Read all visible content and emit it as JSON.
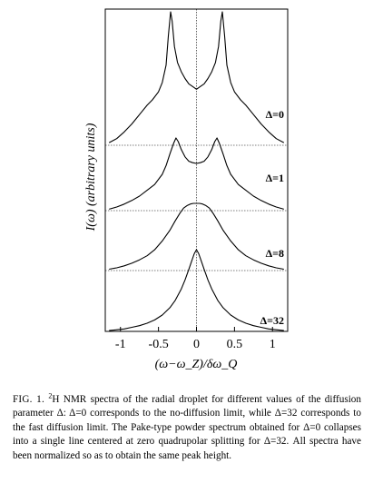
{
  "chart_data": {
    "type": "line",
    "title": "",
    "xlabel": "(ω−ω_Z)/δω_Q",
    "ylabel": "I(ω)   (arbitrary units)",
    "xlim": [
      -1.2,
      1.2
    ],
    "xticks": [
      -1,
      -0.5,
      0,
      0.5,
      1
    ],
    "xtick_labels": [
      "-1",
      "-0.5",
      "0",
      "0.5",
      "1"
    ],
    "grid": false,
    "legend": "none (labels at right of each trace)",
    "series": [
      {
        "name": "Δ=0",
        "x": [
          -1.15,
          -1.05,
          -0.95,
          -0.85,
          -0.75,
          -0.65,
          -0.58,
          -0.5,
          -0.45,
          -0.4,
          -0.37,
          -0.34,
          -0.32,
          -0.29,
          -0.25,
          -0.2,
          -0.15,
          -0.1,
          -0.05,
          0,
          0.05,
          0.1,
          0.15,
          0.2,
          0.25,
          0.29,
          0.32,
          0.34,
          0.37,
          0.4,
          0.45,
          0.5,
          0.58,
          0.65,
          0.75,
          0.85,
          0.95,
          1.05,
          1.15
        ],
        "y": [
          0.02,
          0.05,
          0.1,
          0.16,
          0.23,
          0.3,
          0.34,
          0.4,
          0.47,
          0.6,
          0.82,
          1.0,
          0.93,
          0.74,
          0.62,
          0.55,
          0.5,
          0.46,
          0.44,
          0.42,
          0.44,
          0.46,
          0.5,
          0.55,
          0.62,
          0.74,
          0.93,
          1.0,
          0.82,
          0.6,
          0.47,
          0.4,
          0.34,
          0.3,
          0.23,
          0.16,
          0.1,
          0.05,
          0.02
        ]
      },
      {
        "name": "Δ=1",
        "x": [
          -1.15,
          -1.05,
          -0.95,
          -0.85,
          -0.75,
          -0.65,
          -0.55,
          -0.45,
          -0.4,
          -0.35,
          -0.3,
          -0.27,
          -0.24,
          -0.2,
          -0.15,
          -0.1,
          -0.05,
          0,
          0.05,
          0.1,
          0.15,
          0.2,
          0.24,
          0.27,
          0.3,
          0.35,
          0.4,
          0.45,
          0.55,
          0.65,
          0.75,
          0.85,
          0.95,
          1.05,
          1.15
        ],
        "y": [
          0.02,
          0.05,
          0.09,
          0.14,
          0.2,
          0.28,
          0.36,
          0.5,
          0.62,
          0.78,
          0.93,
          1.0,
          0.95,
          0.84,
          0.74,
          0.68,
          0.66,
          0.65,
          0.66,
          0.68,
          0.74,
          0.84,
          0.95,
          1.0,
          0.93,
          0.78,
          0.62,
          0.5,
          0.36,
          0.28,
          0.2,
          0.14,
          0.09,
          0.05,
          0.02
        ]
      },
      {
        "name": "Δ=8",
        "x": [
          -1.15,
          -1.05,
          -0.95,
          -0.85,
          -0.75,
          -0.65,
          -0.55,
          -0.45,
          -0.35,
          -0.28,
          -0.22,
          -0.17,
          -0.12,
          -0.08,
          -0.04,
          0,
          0.04,
          0.08,
          0.12,
          0.17,
          0.22,
          0.28,
          0.35,
          0.45,
          0.55,
          0.65,
          0.75,
          0.85,
          0.95,
          1.05,
          1.15
        ],
        "y": [
          0.02,
          0.04,
          0.07,
          0.11,
          0.16,
          0.22,
          0.31,
          0.44,
          0.6,
          0.74,
          0.85,
          0.93,
          0.97,
          0.99,
          1.0,
          1.0,
          1.0,
          0.99,
          0.97,
          0.93,
          0.85,
          0.74,
          0.6,
          0.44,
          0.31,
          0.22,
          0.16,
          0.11,
          0.07,
          0.04,
          0.02
        ]
      },
      {
        "name": "Δ=32",
        "x": [
          -1.15,
          -1.05,
          -0.95,
          -0.85,
          -0.75,
          -0.65,
          -0.55,
          -0.45,
          -0.35,
          -0.28,
          -0.2,
          -0.15,
          -0.1,
          -0.06,
          -0.03,
          0,
          0.03,
          0.06,
          0.1,
          0.15,
          0.2,
          0.28,
          0.35,
          0.45,
          0.55,
          0.65,
          0.75,
          0.85,
          0.95,
          1.05,
          1.15
        ],
        "y": [
          0.01,
          0.02,
          0.03,
          0.05,
          0.07,
          0.1,
          0.14,
          0.2,
          0.29,
          0.38,
          0.52,
          0.63,
          0.76,
          0.87,
          0.95,
          1.0,
          0.95,
          0.87,
          0.76,
          0.63,
          0.52,
          0.38,
          0.29,
          0.2,
          0.14,
          0.1,
          0.07,
          0.05,
          0.03,
          0.02,
          0.01
        ]
      }
    ]
  },
  "caption": {
    "label": "FIG. 1.",
    "sup": "2",
    "text": "H NMR spectra of the radial droplet for different values of the diffusion parameter Δ: Δ=0 corresponds to the no-diffusion limit, while Δ=32 corresponds to the fast diffusion limit. The Pake-type powder spectrum obtained for Δ=0 collapses into a single line centered at zero quadrupolar splitting for Δ=32. All spectra have been normalized so as to obtain the same peak height."
  }
}
